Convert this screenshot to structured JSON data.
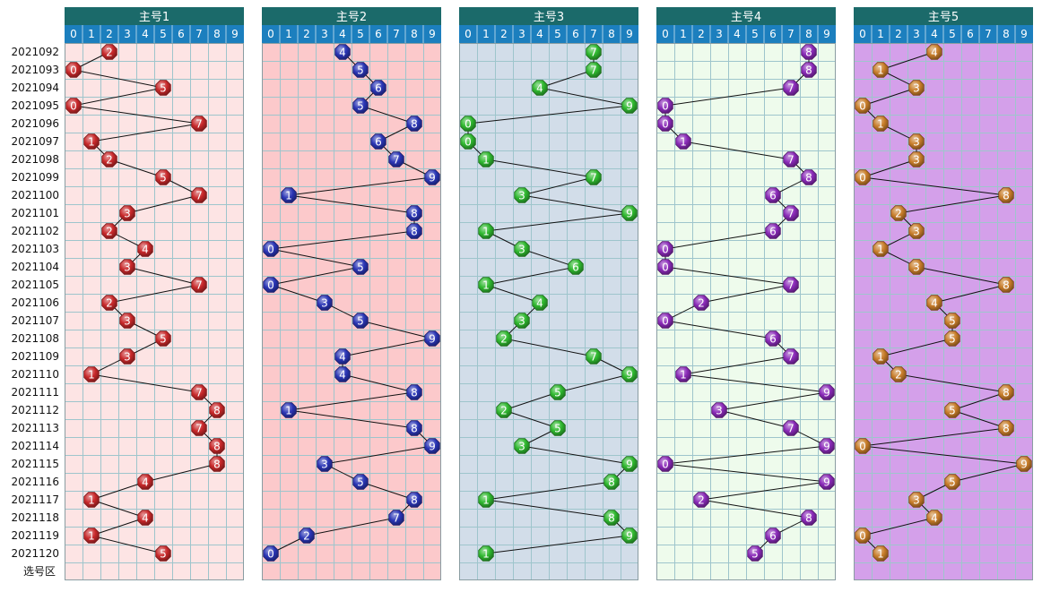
{
  "chart_data": {
    "type": "scatter",
    "title": "",
    "footer_label": "选号区",
    "digits": [
      "0",
      "1",
      "2",
      "3",
      "4",
      "5",
      "6",
      "7",
      "8",
      "9"
    ],
    "periods": [
      "2021092",
      "2021093",
      "2021094",
      "2021095",
      "2021096",
      "2021097",
      "2021098",
      "2021099",
      "2021100",
      "2021101",
      "2021102",
      "2021103",
      "2021104",
      "2021105",
      "2021106",
      "2021107",
      "2021108",
      "2021109",
      "2021110",
      "2021111",
      "2021112",
      "2021113",
      "2021114",
      "2021115",
      "2021116",
      "2021117",
      "2021118",
      "2021119",
      "2021120"
    ],
    "series": [
      {
        "name": "主号1",
        "bg": "#fde4e4",
        "ball": "#c8282a",
        "values": [
          2,
          0,
          5,
          0,
          7,
          1,
          2,
          5,
          7,
          3,
          2,
          4,
          3,
          7,
          2,
          3,
          5,
          3,
          1,
          7,
          8,
          7,
          8,
          8,
          4,
          1,
          4,
          1,
          5
        ]
      },
      {
        "name": "主号2",
        "bg": "#fcc9cb",
        "ball": "#2a35b5",
        "values": [
          4,
          5,
          6,
          5,
          8,
          6,
          7,
          9,
          1,
          8,
          8,
          0,
          5,
          0,
          3,
          5,
          9,
          4,
          4,
          8,
          1,
          8,
          9,
          3,
          5,
          8,
          7,
          2,
          0
        ]
      },
      {
        "name": "主号3",
        "bg": "#d2dde9",
        "ball": "#2fb82f",
        "values": [
          7,
          7,
          4,
          9,
          0,
          0,
          1,
          7,
          3,
          9,
          1,
          3,
          6,
          1,
          4,
          3,
          2,
          7,
          9,
          5,
          2,
          5,
          3,
          9,
          8,
          1,
          8,
          9,
          1
        ]
      },
      {
        "name": "主号4",
        "bg": "#eefbec",
        "ball": "#8a2ab8",
        "values": [
          8,
          8,
          7,
          0,
          0,
          1,
          7,
          8,
          6,
          7,
          6,
          0,
          0,
          7,
          2,
          0,
          6,
          7,
          1,
          9,
          3,
          7,
          9,
          0,
          9,
          2,
          8,
          6,
          5
        ]
      },
      {
        "name": "主号5",
        "bg": "#d4a0ea",
        "ball": "#c87d2a",
        "values": [
          4,
          1,
          3,
          0,
          1,
          3,
          3,
          0,
          8,
          2,
          3,
          1,
          3,
          8,
          4,
          5,
          5,
          1,
          2,
          8,
          5,
          8,
          0,
          9,
          5,
          3,
          4,
          0,
          1
        ]
      }
    ]
  }
}
